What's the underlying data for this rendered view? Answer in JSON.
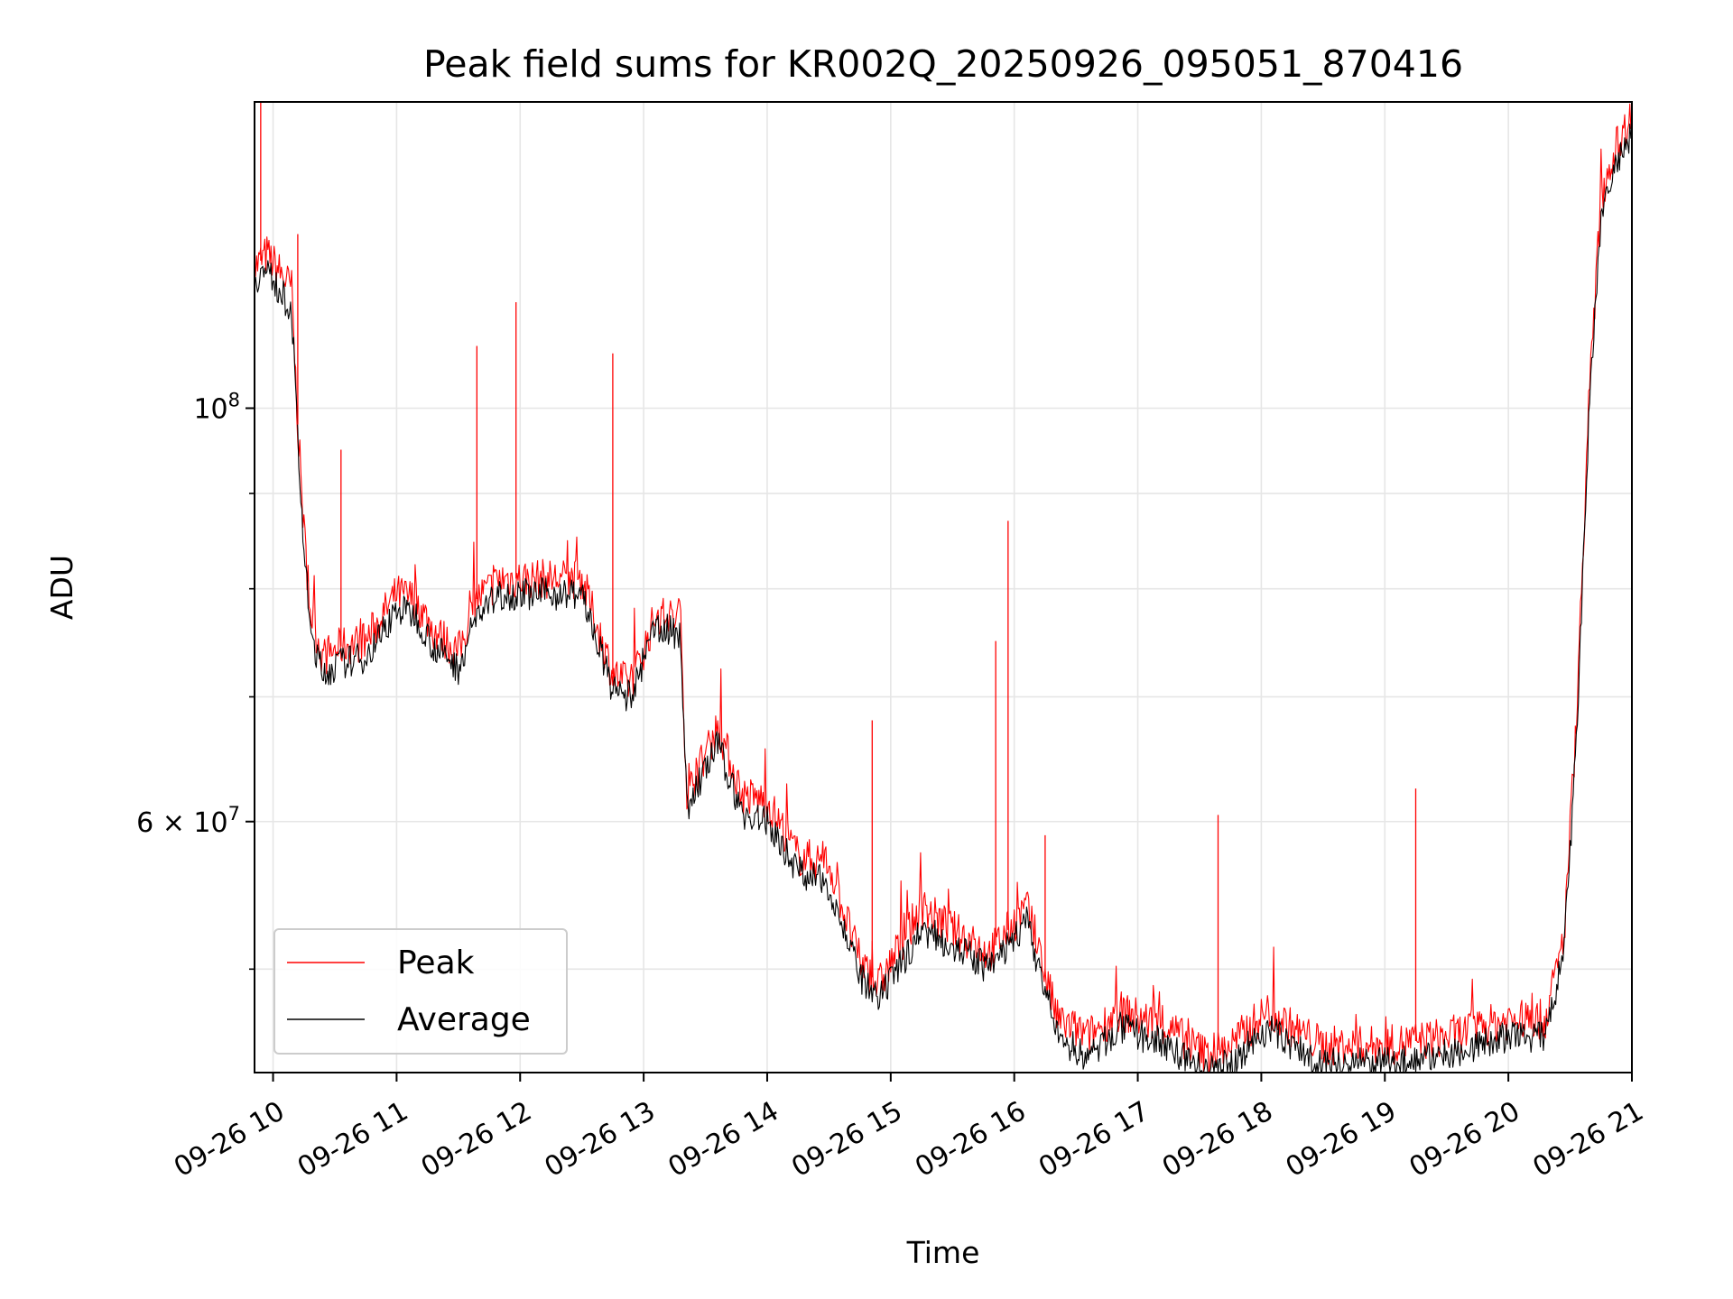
{
  "chart_data": {
    "type": "line",
    "title": "Peak field sums for KR002Q_20250926_095051_870416",
    "xlabel": "Time",
    "ylabel": "ADU",
    "y_scale": "log",
    "ylim": [
      44000000,
      146000000
    ],
    "xlim": [
      "2025-09-26 09:51",
      "2025-09-26 21:00"
    ],
    "grid": true,
    "legend_position": "lower-left",
    "x_ticks": [
      "09-26 10",
      "09-26 11",
      "09-26 12",
      "09-26 13",
      "09-26 14",
      "09-26 15",
      "09-26 16",
      "09-26 17",
      "09-26 18",
      "09-26 19",
      "09-26 20",
      "09-26 21"
    ],
    "y_major_tick_labels": [
      "10^8",
      "6 × 10^7"
    ],
    "y_major_tick_values": [
      100000000,
      60000000
    ],
    "y_minor_tick_values": [
      50000000,
      70000000,
      80000000,
      90000000
    ],
    "x": [
      "2025-09-26 09:51",
      "2025-09-26 09:57",
      "2025-09-26 10:09",
      "2025-09-26 10:12",
      "2025-09-26 10:15",
      "2025-09-26 10:18",
      "2025-09-26 10:24",
      "2025-09-26 10:33",
      "2025-09-26 10:45",
      "2025-09-26 11:00",
      "2025-09-26 11:09",
      "2025-09-26 11:18",
      "2025-09-26 11:30",
      "2025-09-26 11:39",
      "2025-09-26 11:51",
      "2025-09-26 12:09",
      "2025-09-26 12:30",
      "2025-09-26 12:45",
      "2025-09-26 12:54",
      "2025-09-26 13:06",
      "2025-09-26 13:18",
      "2025-09-26 13:21",
      "2025-09-26 13:36",
      "2025-09-26 13:48",
      "2025-09-26 14:00",
      "2025-09-26 14:15",
      "2025-09-26 14:30",
      "2025-09-26 14:45",
      "2025-09-26 14:54",
      "2025-09-26 15:15",
      "2025-09-26 15:30",
      "2025-09-26 15:48",
      "2025-09-26 16:06",
      "2025-09-26 16:21",
      "2025-09-26 16:36",
      "2025-09-26 16:51",
      "2025-09-26 17:15",
      "2025-09-26 17:33",
      "2025-09-26 17:45",
      "2025-09-26 18:03",
      "2025-09-26 18:15",
      "2025-09-26 18:30",
      "2025-09-26 19:00",
      "2025-09-26 19:30",
      "2025-09-26 20:00",
      "2025-09-26 20:18",
      "2025-09-26 20:27",
      "2025-09-26 20:33",
      "2025-09-26 20:39",
      "2025-09-26 20:45",
      "2025-09-26 20:51",
      "2025-09-26 21:00"
    ],
    "series": [
      {
        "name": "Peak",
        "color": "#ff0000",
        "values": [
          119000000,
          121000000,
          116000000,
          98000000,
          86000000,
          78000000,
          73500000,
          74500000,
          75000000,
          79500000,
          79000000,
          76000000,
          74000000,
          79000000,
          81000000,
          81000000,
          81000000,
          72000000,
          71000000,
          77500000,
          77000000,
          62000000,
          67500000,
          62000000,
          61500000,
          57500000,
          57000000,
          50500000,
          49000000,
          54000000,
          52500000,
          51000000,
          54000000,
          47000000,
          46000000,
          47500000,
          46500000,
          45000000,
          45500000,
          47500000,
          46500000,
          45500000,
          45500000,
          46000000,
          47000000,
          47000000,
          52000000,
          68000000,
          100000000,
          130000000,
          137000000,
          144000000
        ],
        "spikes": [
          {
            "x": "2025-09-26 09:54",
            "y": 146000000
          },
          {
            "x": "2025-09-26 10:12",
            "y": 124000000
          },
          {
            "x": "2025-09-26 10:33",
            "y": 95000000
          },
          {
            "x": "2025-09-26 11:39",
            "y": 108000000
          },
          {
            "x": "2025-09-26 11:58",
            "y": 114000000
          },
          {
            "x": "2025-09-26 12:45",
            "y": 107000000
          },
          {
            "x": "2025-09-26 14:51",
            "y": 68000000
          },
          {
            "x": "2025-09-26 15:51",
            "y": 75000000
          },
          {
            "x": "2025-09-26 15:57",
            "y": 87000000
          },
          {
            "x": "2025-09-26 16:15",
            "y": 59000000
          },
          {
            "x": "2025-09-26 17:39",
            "y": 60500000
          },
          {
            "x": "2025-09-26 19:15",
            "y": 62500000
          }
        ]
      },
      {
        "name": "Average",
        "color": "#000000",
        "values": [
          117500000,
          118500000,
          113000000,
          96000000,
          84000000,
          76000000,
          72000000,
          73000000,
          73500000,
          78000000,
          77500000,
          74500000,
          72500000,
          77500000,
          79500000,
          79500000,
          79500000,
          70500000,
          70000000,
          76500000,
          75500000,
          61000000,
          66000000,
          60500000,
          60000000,
          56500000,
          55500000,
          49500000,
          48000000,
          52500000,
          51500000,
          50000000,
          53000000,
          46000000,
          44800000,
          46500000,
          45500000,
          44000000,
          44500000,
          46500000,
          45500000,
          44500000,
          44500000,
          45000000,
          46000000,
          46000000,
          51000000,
          66000000,
          98000000,
          127000000,
          134000000,
          140000000
        ]
      }
    ]
  }
}
